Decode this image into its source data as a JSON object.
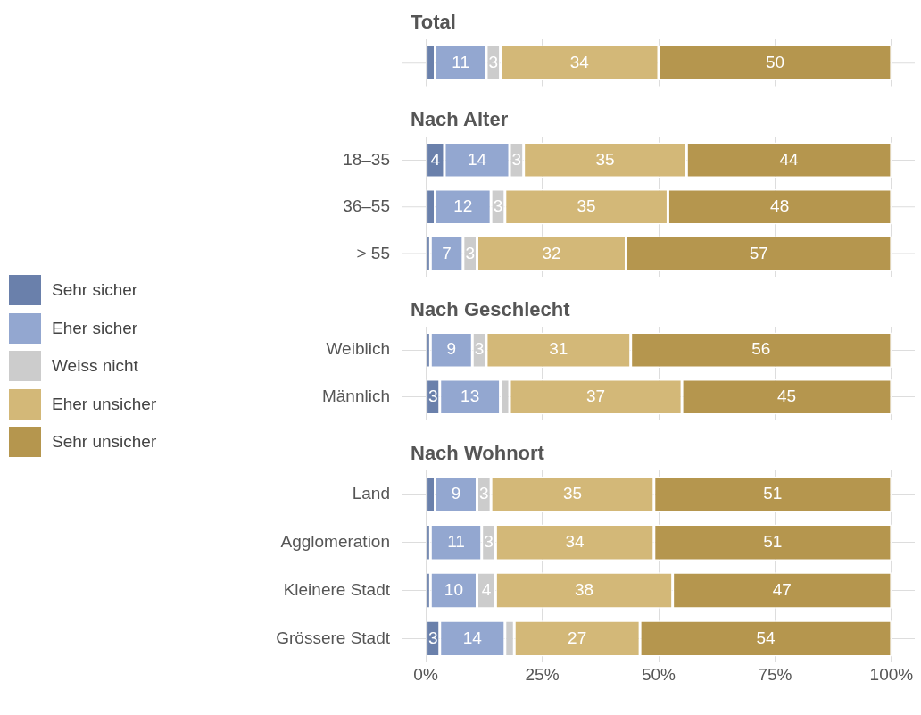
{
  "chart_data": [
    {
      "type": "bar",
      "orientation": "horizontal",
      "stacked": true,
      "title": "Total",
      "categories": [
        null
      ],
      "xlim": [
        -5,
        105
      ],
      "xticks": [
        {
          "value": 0,
          "label": null
        },
        {
          "value": 25,
          "label": null
        },
        {
          "value": 50,
          "label": null
        },
        {
          "value": 75,
          "label": null
        },
        {
          "value": 100,
          "label": null
        }
      ],
      "tick_labels": "y",
      "grid": true,
      "legend": "left",
      "series": [
        {
          "name": "Sehr sicher",
          "color": "#6a80ab",
          "values": [
            2
          ],
          "value_labels": [
            null
          ]
        },
        {
          "name": "Eher sicher",
          "color": "#93a7d0",
          "values": [
            11
          ],
          "value_labels": [
            "11"
          ]
        },
        {
          "name": "Weiss nicht",
          "color": "#cccccc",
          "values": [
            3
          ],
          "value_labels": [
            "3"
          ]
        },
        {
          "name": "Eher unsicher",
          "color": "#d3b878",
          "values": [
            34
          ],
          "value_labels": [
            "34"
          ]
        },
        {
          "name": "Sehr unsicher",
          "color": "#b5964e",
          "values": [
            50
          ],
          "value_labels": [
            "50"
          ]
        }
      ]
    },
    {
      "type": "bar",
      "orientation": "horizontal",
      "stacked": true,
      "title": "Nach Alter",
      "categories": [
        "18–35",
        "36–55",
        "> 55"
      ],
      "xlim": [
        -5,
        105
      ],
      "xticks": [
        {
          "value": 0,
          "label": null
        },
        {
          "value": 25,
          "label": null
        },
        {
          "value": 50,
          "label": null
        },
        {
          "value": 75,
          "label": null
        },
        {
          "value": 100,
          "label": null
        }
      ],
      "tick_labels": "y",
      "grid": true,
      "series": [
        {
          "color": "#6a80ab",
          "values": [
            4,
            2,
            1
          ],
          "value_labels": [
            "4",
            null,
            null
          ]
        },
        {
          "color": "#93a7d0",
          "values": [
            14,
            12,
            7
          ],
          "value_labels": [
            "14",
            "12",
            "7"
          ]
        },
        {
          "color": "#cccccc",
          "values": [
            3,
            3,
            3
          ],
          "value_labels": [
            "3",
            "3",
            "3"
          ]
        },
        {
          "color": "#d3b878",
          "values": [
            35,
            35,
            32
          ],
          "value_labels": [
            "35",
            "35",
            "32"
          ]
        },
        {
          "color": "#b5964e",
          "values": [
            44,
            48,
            57
          ],
          "value_labels": [
            "44",
            "48",
            "57"
          ]
        }
      ]
    },
    {
      "type": "bar",
      "orientation": "horizontal",
      "stacked": true,
      "title": "Nach Geschlecht",
      "categories": [
        "Weiblich",
        "Männlich"
      ],
      "xlim": [
        -5,
        105
      ],
      "xticks": [
        {
          "value": 0,
          "label": null
        },
        {
          "value": 25,
          "label": null
        },
        {
          "value": 50,
          "label": null
        },
        {
          "value": 75,
          "label": null
        },
        {
          "value": 100,
          "label": null
        }
      ],
      "tick_labels": "y",
      "grid": true,
      "series": [
        {
          "color": "#6a80ab",
          "values": [
            1,
            3
          ],
          "value_labels": [
            null,
            "3"
          ]
        },
        {
          "color": "#93a7d0",
          "values": [
            9,
            13
          ],
          "value_labels": [
            "9",
            "13"
          ]
        },
        {
          "color": "#cccccc",
          "values": [
            3,
            2
          ],
          "value_labels": [
            "3",
            null
          ]
        },
        {
          "color": "#d3b878",
          "values": [
            31,
            37
          ],
          "value_labels": [
            "31",
            "37"
          ]
        },
        {
          "color": "#b5964e",
          "values": [
            56,
            45
          ],
          "value_labels": [
            "56",
            "45"
          ]
        }
      ]
    },
    {
      "type": "bar",
      "orientation": "horizontal",
      "stacked": true,
      "title": "Nach Wohnort",
      "categories": [
        "Land",
        "Agglomeration",
        "Kleinere Stadt",
        "Grössere Stadt"
      ],
      "xlim": [
        -5,
        105
      ],
      "xticks": [
        {
          "value": 0,
          "label": "0%"
        },
        {
          "value": 25,
          "label": "25%"
        },
        {
          "value": 50,
          "label": "50%"
        },
        {
          "value": 75,
          "label": "75%"
        },
        {
          "value": 100,
          "label": "100%"
        }
      ],
      "grid": true,
      "series": [
        {
          "color": "#6a80ab",
          "values": [
            2,
            1,
            1,
            3
          ],
          "value_labels": [
            null,
            null,
            null,
            "3"
          ]
        },
        {
          "color": "#93a7d0",
          "values": [
            9,
            11,
            10,
            14
          ],
          "value_labels": [
            "9",
            "11",
            "10",
            "14"
          ]
        },
        {
          "color": "#cccccc",
          "values": [
            3,
            3,
            4,
            2
          ],
          "value_labels": [
            "3",
            "3",
            "4",
            null
          ]
        },
        {
          "color": "#d3b878",
          "values": [
            35,
            34,
            38,
            27
          ],
          "value_labels": [
            "35",
            "34",
            "38",
            "27"
          ]
        },
        {
          "color": "#b5964e",
          "values": [
            51,
            51,
            47,
            54
          ],
          "value_labels": [
            "51",
            "51",
            "47",
            "54"
          ]
        }
      ]
    }
  ]
}
